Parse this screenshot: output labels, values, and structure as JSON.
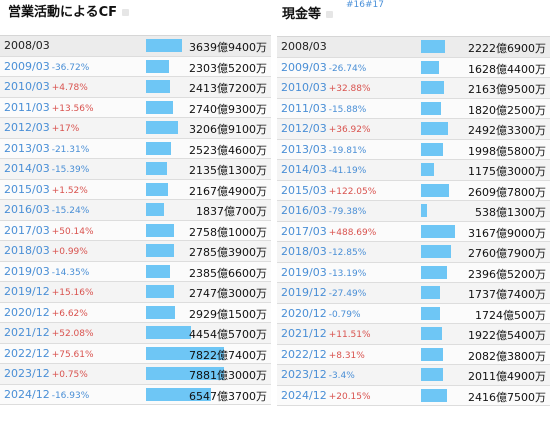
{
  "left": {
    "title": "営業活動によるCF",
    "rows": [
      {
        "date": "2008/03",
        "change": "",
        "value": "3639億9400万",
        "ratio": 0.467
      },
      {
        "date": "2009/03",
        "change": "-36.72%",
        "value": "2303億5200万",
        "ratio": 0.295
      },
      {
        "date": "2010/03",
        "change": "+4.78%",
        "value": "2413億7200万",
        "ratio": 0.309
      },
      {
        "date": "2011/03",
        "change": "+13.56%",
        "value": "2740億9300万",
        "ratio": 0.351
      },
      {
        "date": "2012/03",
        "change": "+17%",
        "value": "3206億9100万",
        "ratio": 0.411
      },
      {
        "date": "2013/03",
        "change": "-21.31%",
        "value": "2523億4600万",
        "ratio": 0.323
      },
      {
        "date": "2014/03",
        "change": "-15.39%",
        "value": "2135億1300万",
        "ratio": 0.274
      },
      {
        "date": "2015/03",
        "change": "+1.52%",
        "value": "2167億4900万",
        "ratio": 0.278
      },
      {
        "date": "2016/03",
        "change": "-15.24%",
        "value": "1837億700万",
        "ratio": 0.235
      },
      {
        "date": "2017/03",
        "change": "+50.14%",
        "value": "2758億1000万",
        "ratio": 0.353
      },
      {
        "date": "2018/03",
        "change": "+0.99%",
        "value": "2785億3900万",
        "ratio": 0.357
      },
      {
        "date": "2019/03",
        "change": "-14.35%",
        "value": "2385億6600万",
        "ratio": 0.306
      },
      {
        "date": "2019/12",
        "change": "+15.16%",
        "value": "2747億3000万",
        "ratio": 0.352
      },
      {
        "date": "2020/12",
        "change": "+6.62%",
        "value": "2929億1500万",
        "ratio": 0.375
      },
      {
        "date": "2021/12",
        "change": "+52.08%",
        "value": "4454億5700万",
        "ratio": 0.571
      },
      {
        "date": "2022/12",
        "change": "+75.61%",
        "value": "7822億7400万",
        "ratio": 1.0
      },
      {
        "date": "2023/12",
        "change": "+0.75%",
        "value": "7881億3000万",
        "ratio": 1.0
      },
      {
        "date": "2024/12",
        "change": "-16.93%",
        "value": "6547億3700万",
        "ratio": 0.839
      }
    ]
  },
  "right": {
    "title": "現金等",
    "tag_link": "#16#17",
    "rows": [
      {
        "date": "2008/03",
        "change": "",
        "value": "2222億6900万",
        "ratio": 0.702
      },
      {
        "date": "2009/03",
        "change": "-26.74%",
        "value": "1628億4400万",
        "ratio": 0.514
      },
      {
        "date": "2010/03",
        "change": "+32.88%",
        "value": "2163億9500万",
        "ratio": 0.683
      },
      {
        "date": "2011/03",
        "change": "-15.88%",
        "value": "1820億2500万",
        "ratio": 0.575
      },
      {
        "date": "2012/03",
        "change": "+36.92%",
        "value": "2492億3300万",
        "ratio": 0.787
      },
      {
        "date": "2013/03",
        "change": "-19.81%",
        "value": "1998億5800万",
        "ratio": 0.631
      },
      {
        "date": "2014/03",
        "change": "-41.19%",
        "value": "1175億3000万",
        "ratio": 0.371
      },
      {
        "date": "2015/03",
        "change": "+122.05%",
        "value": "2609億7800万",
        "ratio": 0.824
      },
      {
        "date": "2016/03",
        "change": "-79.38%",
        "value": "538億1300万",
        "ratio": 0.17
      },
      {
        "date": "2017/03",
        "change": "+488.69%",
        "value": "3167億9000万",
        "ratio": 1.0
      },
      {
        "date": "2018/03",
        "change": "-12.85%",
        "value": "2760億7900万",
        "ratio": 0.872
      },
      {
        "date": "2019/03",
        "change": "-13.19%",
        "value": "2396億5200万",
        "ratio": 0.757
      },
      {
        "date": "2019/12",
        "change": "-27.49%",
        "value": "1737億7400万",
        "ratio": 0.549
      },
      {
        "date": "2020/12",
        "change": "-0.79%",
        "value": "1724億500万",
        "ratio": 0.544
      },
      {
        "date": "2021/12",
        "change": "+11.51%",
        "value": "1922億5400万",
        "ratio": 0.607
      },
      {
        "date": "2022/12",
        "change": "+8.31%",
        "value": "2082億3800万",
        "ratio": 0.657
      },
      {
        "date": "2023/12",
        "change": "-3.4%",
        "value": "2011億4900万",
        "ratio": 0.635
      },
      {
        "date": "2024/12",
        "change": "+20.15%",
        "value": "2416億7500万",
        "ratio": 0.763
      }
    ]
  },
  "colors": {
    "bar": "#6ec6f5",
    "date_link": "#4a8fd6",
    "change_up": "#d9534f",
    "change_down": "#4a8fd6"
  },
  "icons": {
    "title_icon": "small-square-icon"
  }
}
